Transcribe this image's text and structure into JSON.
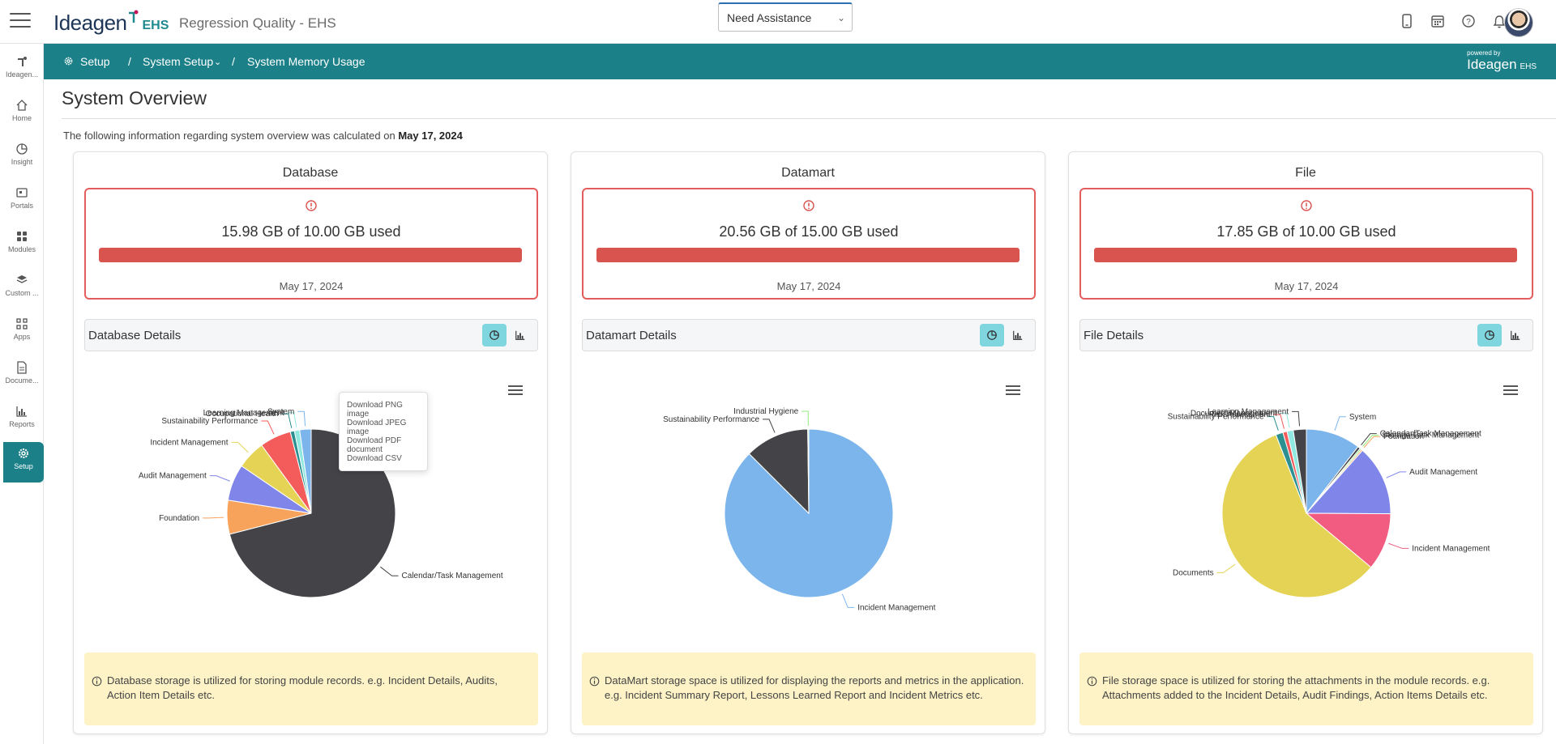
{
  "header": {
    "logo_text": "Ideagen",
    "logo_suffix": "EHS",
    "app_title": "Regression Quality - EHS",
    "assist_label": "Need Assistance",
    "icons": [
      "mobile-icon",
      "calendar-icon",
      "help-icon",
      "bell-icon"
    ]
  },
  "sidebar": {
    "items": [
      {
        "label": "Ideagen...",
        "icon": "ideagen-icon"
      },
      {
        "label": "Home",
        "icon": "home-icon"
      },
      {
        "label": "Insight",
        "icon": "insight-icon"
      },
      {
        "label": "Portals",
        "icon": "portals-icon"
      },
      {
        "label": "Modules",
        "icon": "modules-icon"
      },
      {
        "label": "Custom ...",
        "icon": "custom-icon"
      },
      {
        "label": "Apps",
        "icon": "apps-icon"
      },
      {
        "label": "Docume...",
        "icon": "document-icon"
      },
      {
        "label": "Reports",
        "icon": "reports-icon"
      },
      {
        "label": "Setup",
        "icon": "gear-icon",
        "active": true
      }
    ]
  },
  "breadcrumb": {
    "items": [
      "Setup",
      "System Setup",
      "System Memory Usage"
    ],
    "separator": "/",
    "powered_by": "powered by",
    "powered_logo": "Ideagen",
    "powered_suffix": "EHS"
  },
  "main": {
    "title": "System Overview",
    "info_prefix": "The following information regarding system overview was calculated on",
    "info_date": "May 17, 2024"
  },
  "cards": [
    {
      "title": "Database",
      "usage": "15.98 GB of 10.00 GB used",
      "usage_fraction": 1.0,
      "date": "May 17, 2024",
      "details_title": "Database Details",
      "note": "Database storage is utilized for storing module records. e.g. Incident Details, Audits, Action Item Details etc."
    },
    {
      "title": "Datamart",
      "usage": "20.56 GB of 15.00 GB used",
      "usage_fraction": 1.0,
      "date": "May 17, 2024",
      "details_title": "Datamart Details",
      "note": "DataMart storage space is utilized for displaying the reports and metrics in the application. e.g. Incident Summary Report, Lessons Learned Report and Incident Metrics etc."
    },
    {
      "title": "File",
      "usage": "17.85 GB of 10.00 GB used",
      "usage_fraction": 1.0,
      "date": "May 17, 2024",
      "details_title": "File Details",
      "note": "File storage space is utilized for storing the attachments in the module records. e.g. Attachments added to the Incident Details, Audit Findings, Action Items Details etc."
    }
  ],
  "export_menu": {
    "items": [
      "Download PNG image",
      "Download JPEG image",
      "Download PDF document",
      "Download CSV"
    ]
  },
  "colors": {
    "brand": "#1b8088",
    "danger": "#d9534f",
    "note_bg": "#fdf3c7",
    "active_button": "#7fd6df"
  },
  "chart_data": [
    {
      "type": "pie",
      "title": "",
      "slices": [
        {
          "name": "Calendar/Task Management",
          "value": 71.0,
          "color": "#434348"
        },
        {
          "name": "Foundation",
          "value": 6.5,
          "color": "#f7a35c"
        },
        {
          "name": "Audit Management",
          "value": 7.0,
          "color": "#8085e9"
        },
        {
          "name": "Incident Management",
          "value": 5.5,
          "color": "#e4d354"
        },
        {
          "name": "Sustainability Performance",
          "value": 6.0,
          "color": "#f45b5b"
        },
        {
          "name": "Occupational Health",
          "value": 0.8,
          "color": "#2b908f"
        },
        {
          "name": "Learning Management",
          "value": 1.0,
          "color": "#91e8e1"
        },
        {
          "name": "System",
          "value": 2.2,
          "color": "#7cb5ec"
        }
      ]
    },
    {
      "type": "pie",
      "title": "",
      "slices": [
        {
          "name": "Incident Management",
          "value": 87.5,
          "color": "#7cb5ec"
        },
        {
          "name": "Sustainability Performance",
          "value": 12.3,
          "color": "#434348"
        },
        {
          "name": "Industrial Hygiene",
          "value": 0.2,
          "color": "#90ed7d"
        }
      ]
    },
    {
      "type": "pie",
      "title": "",
      "slices": [
        {
          "name": "System",
          "value": 10.5,
          "color": "#7cb5ec"
        },
        {
          "name": "Calendar/Task Management",
          "value": 0.5,
          "color": "#434348"
        },
        {
          "name": "Storage Tank Management",
          "value": 0.3,
          "color": "#90ed7d"
        },
        {
          "name": "Foundation",
          "value": 0.3,
          "color": "#f7a35c"
        },
        {
          "name": "Audit Management",
          "value": 13.5,
          "color": "#8085e9"
        },
        {
          "name": "Incident Management",
          "value": 11.0,
          "color": "#f15c80"
        },
        {
          "name": "Documents",
          "value": 58.0,
          "color": "#e4d354"
        },
        {
          "name": "Sustainability Performance",
          "value": 1.4,
          "color": "#2b908f"
        },
        {
          "name": "Risk Assessment",
          "value": 0.8,
          "color": "#f45b5b"
        },
        {
          "name": "Document Management",
          "value": 1.2,
          "color": "#91e8e1"
        },
        {
          "name": "Learning Management",
          "value": 2.5,
          "color": "#434348"
        }
      ]
    }
  ]
}
